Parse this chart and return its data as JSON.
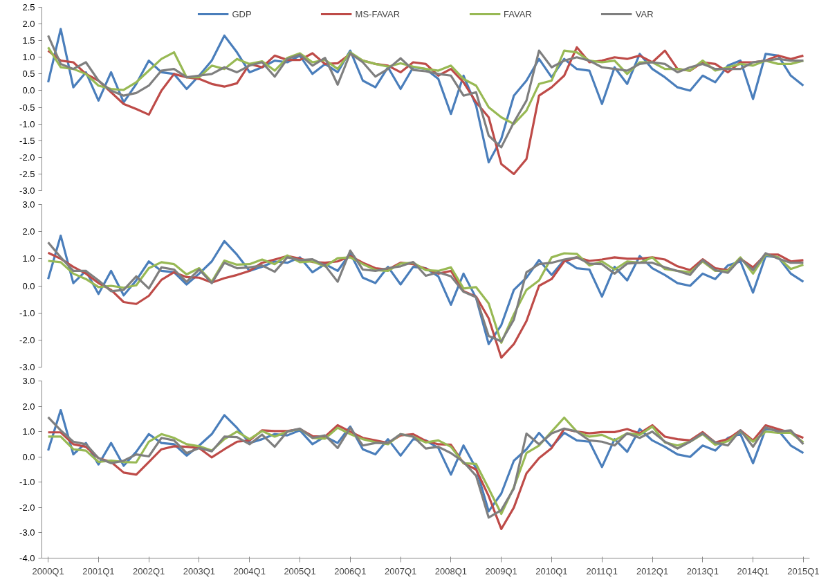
{
  "chart_data": [
    {
      "type": "line",
      "legend": "top",
      "tick_labels": "y",
      "grid": false,
      "categories": [
        null,
        null,
        null,
        null,
        null,
        null,
        null,
        null,
        null,
        null,
        null,
        null,
        null,
        null,
        null,
        null,
        null,
        null,
        null,
        null,
        null,
        null,
        null,
        null,
        null,
        null,
        null,
        null,
        null,
        null,
        null,
        null,
        null,
        null,
        null,
        null,
        null,
        null,
        null,
        null,
        null,
        null,
        null,
        null,
        null,
        null,
        null,
        null,
        null,
        null,
        null,
        null,
        null,
        null,
        null,
        null,
        null,
        null,
        null,
        null,
        null
      ],
      "ylim": [
        -3.0,
        2.5
      ],
      "yticks": [
        {
          "value": -3.0,
          "label": "-3.0"
        },
        {
          "value": -2.5,
          "label": "-2.5"
        },
        {
          "value": -2.0,
          "label": "-2.0"
        },
        {
          "value": -1.5,
          "label": "-1.5"
        },
        {
          "value": -1.0,
          "label": "-1.0"
        },
        {
          "value": -0.5,
          "label": "-0.5"
        },
        {
          "value": 0.0,
          "label": "0.0"
        },
        {
          "value": 0.5,
          "label": "0.5"
        },
        {
          "value": 1.0,
          "label": "1.0"
        },
        {
          "value": 1.5,
          "label": "1.5"
        },
        {
          "value": 2.0,
          "label": "2.0"
        },
        {
          "value": 2.5,
          "label": "2.5"
        }
      ],
      "series": [
        {
          "name": "GDP",
          "color": "#4a7ebb",
          "values": [
            0.25,
            1.85,
            0.1,
            0.55,
            -0.3,
            0.55,
            -0.35,
            0.2,
            0.9,
            0.55,
            0.5,
            0.05,
            0.45,
            0.9,
            1.65,
            1.15,
            0.55,
            0.7,
            0.9,
            0.85,
            1.05,
            0.5,
            0.8,
            0.55,
            1.2,
            0.3,
            0.1,
            0.7,
            0.05,
            0.7,
            0.65,
            0.35,
            -0.7,
            0.45,
            -0.45,
            -2.15,
            -1.45,
            -0.15,
            0.3,
            0.95,
            0.4,
            0.95,
            0.65,
            0.6,
            -0.4,
            0.7,
            0.2,
            1.1,
            0.65,
            0.4,
            0.1,
            0.0,
            0.45,
            0.25,
            0.75,
            0.9,
            -0.25,
            1.1,
            1.05,
            0.45,
            0.15
          ]
        },
        {
          "name": "MS-FAVAR",
          "color": "#be4b48",
          "values": [
            1.2,
            0.9,
            0.85,
            0.5,
            0.3,
            -0.05,
            -0.4,
            -0.55,
            -0.72,
            0.0,
            0.5,
            0.4,
            0.35,
            0.2,
            0.12,
            0.22,
            0.8,
            0.7,
            1.05,
            0.92,
            0.92,
            1.12,
            0.8,
            0.82,
            1.1,
            0.9,
            0.8,
            0.75,
            0.55,
            0.85,
            0.8,
            0.45,
            0.65,
            0.25,
            -0.35,
            -0.8,
            -2.2,
            -2.5,
            -2.05,
            -0.15,
            0.1,
            0.45,
            1.3,
            0.85,
            0.9,
            1.0,
            0.95,
            1.05,
            0.85,
            1.2,
            0.65,
            0.6,
            0.85,
            0.8,
            0.55,
            0.85,
            0.85,
            0.9,
            1.05,
            0.95,
            1.05
          ]
        },
        {
          "name": "FAVAR",
          "color": "#98b954",
          "values": [
            1.3,
            0.7,
            0.65,
            0.5,
            0.15,
            0.05,
            0.02,
            0.25,
            0.6,
            0.95,
            1.15,
            0.4,
            0.4,
            0.75,
            0.65,
            0.95,
            0.8,
            0.88,
            0.6,
            0.98,
            1.12,
            0.85,
            0.92,
            0.65,
            1.15,
            0.9,
            0.8,
            0.72,
            0.82,
            0.72,
            0.65,
            0.6,
            0.75,
            0.35,
            0.15,
            -0.5,
            -0.8,
            -1.0,
            -0.6,
            0.2,
            0.3,
            1.2,
            1.15,
            0.9,
            0.85,
            0.9,
            0.5,
            0.85,
            0.85,
            0.65,
            0.65,
            0.6,
            0.9,
            0.6,
            0.7,
            0.8,
            0.75,
            0.9,
            0.8,
            0.8,
            0.9
          ]
        },
        {
          "name": "VAR",
          "color": "#7f7f7f",
          "values": [
            1.65,
            0.8,
            0.65,
            0.85,
            0.3,
            0.0,
            -0.15,
            -0.07,
            0.15,
            0.6,
            0.65,
            0.4,
            0.45,
            0.5,
            0.7,
            0.55,
            0.75,
            0.85,
            0.42,
            0.95,
            1.08,
            0.75,
            0.98,
            0.18,
            1.12,
            0.85,
            0.42,
            0.65,
            0.97,
            0.62,
            0.58,
            0.5,
            0.45,
            -0.15,
            -0.05,
            -1.35,
            -1.7,
            -0.95,
            -0.3,
            1.2,
            0.7,
            0.9,
            1.0,
            0.9,
            0.7,
            0.65,
            0.6,
            0.8,
            0.85,
            0.8,
            0.55,
            0.7,
            0.8,
            0.65,
            0.65,
            0.65,
            0.85,
            0.9,
            0.95,
            0.9,
            0.9
          ]
        }
      ]
    },
    {
      "type": "line",
      "tick_labels": "y",
      "grid": false,
      "categories": [
        null,
        null,
        null,
        null,
        null,
        null,
        null,
        null,
        null,
        null,
        null,
        null,
        null,
        null,
        null,
        null,
        null,
        null,
        null,
        null,
        null,
        null,
        null,
        null,
        null,
        null,
        null,
        null,
        null,
        null,
        null,
        null,
        null,
        null,
        null,
        null,
        null,
        null,
        null,
        null,
        null,
        null,
        null,
        null,
        null,
        null,
        null,
        null,
        null,
        null,
        null,
        null,
        null,
        null,
        null,
        null,
        null,
        null,
        null,
        null,
        null
      ],
      "ylim": [
        -3.0,
        3.0
      ],
      "yticks": [
        {
          "value": -3.0,
          "label": "-3.0"
        },
        {
          "value": -2.0,
          "label": "-2.0"
        },
        {
          "value": -1.0,
          "label": "-1.0"
        },
        {
          "value": 0.0,
          "label": "0.0"
        },
        {
          "value": 1.0,
          "label": "1.0"
        },
        {
          "value": 2.0,
          "label": "2.0"
        },
        {
          "value": 3.0,
          "label": "3.0"
        }
      ],
      "series": [
        {
          "color": "#4a7ebb",
          "values": [
            0.25,
            1.85,
            0.1,
            0.55,
            -0.3,
            0.55,
            -0.35,
            0.2,
            0.9,
            0.55,
            0.5,
            0.05,
            0.45,
            0.9,
            1.65,
            1.15,
            0.55,
            0.7,
            0.9,
            0.85,
            1.05,
            0.5,
            0.8,
            0.55,
            1.2,
            0.3,
            0.1,
            0.7,
            0.05,
            0.7,
            0.65,
            0.35,
            -0.7,
            0.45,
            -0.45,
            -2.15,
            -1.45,
            -0.15,
            0.3,
            0.95,
            0.4,
            0.95,
            0.65,
            0.6,
            -0.4,
            0.7,
            0.2,
            1.1,
            0.65,
            0.4,
            0.1,
            0.0,
            0.45,
            0.25,
            0.75,
            0.9,
            -0.25,
            1.1,
            1.05,
            0.45,
            0.15
          ]
        },
        {
          "color": "#be4b48",
          "values": [
            1.22,
            1.0,
            0.7,
            0.45,
            0.1,
            -0.15,
            -0.6,
            -0.67,
            -0.37,
            0.22,
            0.5,
            0.32,
            0.3,
            0.12,
            0.28,
            0.4,
            0.55,
            0.85,
            0.97,
            1.1,
            1.0,
            0.88,
            0.85,
            0.9,
            1.1,
            0.85,
            0.65,
            0.6,
            0.85,
            0.8,
            0.63,
            0.45,
            0.55,
            -0.2,
            -0.4,
            -1.2,
            -2.65,
            -2.15,
            -1.3,
            0.0,
            0.25,
            0.9,
            1.05,
            0.92,
            0.97,
            1.05,
            1.0,
            1.0,
            1.05,
            0.97,
            0.72,
            0.58,
            0.98,
            0.65,
            0.58,
            1.0,
            0.68,
            1.15,
            1.15,
            0.9,
            0.95
          ]
        },
        {
          "color": "#98b954",
          "values": [
            0.92,
            0.87,
            0.45,
            0.25,
            -0.05,
            0.0,
            -0.07,
            0.02,
            0.65,
            0.87,
            0.8,
            0.42,
            0.65,
            0.15,
            0.93,
            0.78,
            0.8,
            0.97,
            0.8,
            1.12,
            0.87,
            0.9,
            0.72,
            1.02,
            1.05,
            0.8,
            0.58,
            0.55,
            0.82,
            0.85,
            0.58,
            0.55,
            0.68,
            -0.1,
            -0.05,
            -0.65,
            -2.1,
            -1.05,
            -0.15,
            0.2,
            1.05,
            1.2,
            1.18,
            0.75,
            0.9,
            0.6,
            0.9,
            0.85,
            1.05,
            0.62,
            0.55,
            0.5,
            0.9,
            0.55,
            0.55,
            1.05,
            0.45,
            1.15,
            1.05,
            0.62,
            0.78
          ]
        },
        {
          "color": "#7f7f7f",
          "values": [
            1.6,
            1.05,
            0.55,
            0.55,
            0.2,
            -0.2,
            -0.15,
            0.35,
            -0.1,
            0.68,
            0.6,
            0.15,
            0.6,
            0.1,
            0.85,
            0.65,
            0.68,
            0.75,
            0.52,
            1.05,
            0.95,
            0.98,
            0.75,
            0.15,
            1.3,
            0.6,
            0.55,
            0.65,
            0.72,
            0.88,
            0.37,
            0.5,
            0.35,
            -0.22,
            -0.42,
            -1.85,
            -2.05,
            -1.25,
            0.5,
            0.8,
            0.85,
            0.97,
            1.05,
            0.82,
            0.8,
            0.45,
            0.82,
            0.85,
            0.85,
            0.68,
            0.55,
            0.4,
            0.95,
            0.58,
            0.48,
            1.0,
            0.58,
            1.2,
            1.0,
            0.85,
            0.85
          ]
        }
      ]
    },
    {
      "type": "line",
      "grid": false,
      "categories": [
        "2000Q1",
        null,
        null,
        null,
        "2001Q1",
        null,
        null,
        null,
        "2002Q1",
        null,
        null,
        null,
        "2003Q1",
        null,
        null,
        null,
        "2004Q1",
        null,
        null,
        null,
        "2005Q1",
        null,
        null,
        null,
        "2006Q1",
        null,
        null,
        null,
        "2007Q1",
        null,
        null,
        null,
        "2008Q1",
        null,
        null,
        null,
        "2009Q1",
        null,
        null,
        null,
        "2010Q1",
        null,
        null,
        null,
        "2011Q1",
        null,
        null,
        null,
        "2012Q1",
        null,
        null,
        null,
        "2013Q1",
        null,
        null,
        null,
        "2014Q1",
        null,
        null,
        null,
        "2015Q1"
      ],
      "ylim": [
        -4.0,
        3.0
      ],
      "yticks": [
        {
          "value": -4.0,
          "label": "-4.0"
        },
        {
          "value": -3.0,
          "label": "-3.0"
        },
        {
          "value": -2.0,
          "label": "-2.0"
        },
        {
          "value": -1.0,
          "label": "-1.0"
        },
        {
          "value": 0.0,
          "label": "0.0"
        },
        {
          "value": 1.0,
          "label": "1.0"
        },
        {
          "value": 2.0,
          "label": "2.0"
        },
        {
          "value": 3.0,
          "label": "3.0"
        }
      ],
      "series": [
        {
          "color": "#4a7ebb",
          "values": [
            0.25,
            1.85,
            0.1,
            0.55,
            -0.3,
            0.55,
            -0.35,
            0.2,
            0.9,
            0.55,
            0.5,
            0.05,
            0.45,
            0.9,
            1.65,
            1.15,
            0.55,
            0.7,
            0.9,
            0.85,
            1.05,
            0.5,
            0.8,
            0.55,
            1.2,
            0.3,
            0.1,
            0.7,
            0.05,
            0.7,
            0.65,
            0.35,
            -0.7,
            0.45,
            -0.45,
            -2.15,
            -1.45,
            -0.15,
            0.3,
            0.95,
            0.4,
            0.95,
            0.65,
            0.6,
            -0.4,
            0.7,
            0.2,
            1.1,
            0.65,
            0.4,
            0.1,
            0.0,
            0.45,
            0.25,
            0.75,
            0.9,
            -0.25,
            1.1,
            1.05,
            0.45,
            0.15
          ]
        },
        {
          "color": "#be4b48",
          "values": [
            0.97,
            0.97,
            0.5,
            0.4,
            -0.05,
            -0.2,
            -0.62,
            -0.7,
            -0.2,
            0.3,
            0.42,
            0.4,
            0.35,
            -0.02,
            0.3,
            0.6,
            0.65,
            1.05,
            1.02,
            1.02,
            1.1,
            0.82,
            0.8,
            1.25,
            1.0,
            0.75,
            0.65,
            0.55,
            0.85,
            0.9,
            0.63,
            0.5,
            0.48,
            -0.25,
            -0.5,
            -1.55,
            -2.85,
            -2.0,
            -0.65,
            -0.05,
            0.35,
            1.1,
            1.0,
            0.93,
            0.98,
            0.98,
            1.1,
            0.93,
            1.25,
            0.8,
            0.7,
            0.65,
            0.98,
            0.57,
            0.7,
            1.05,
            0.65,
            1.25,
            1.1,
            0.95,
            0.75
          ]
        },
        {
          "color": "#98b954",
          "values": [
            0.8,
            0.8,
            0.3,
            0.25,
            -0.2,
            -0.15,
            -0.2,
            -0.22,
            0.6,
            0.9,
            0.75,
            0.5,
            0.42,
            0.25,
            0.7,
            1.0,
            0.7,
            1.02,
            0.8,
            1.0,
            1.1,
            0.75,
            0.72,
            1.15,
            0.9,
            0.7,
            0.58,
            0.5,
            0.9,
            0.8,
            0.57,
            0.65,
            0.4,
            -0.25,
            -0.28,
            -1.25,
            -2.25,
            -1.2,
            0.15,
            0.45,
            1.0,
            1.55,
            1.0,
            0.8,
            0.87,
            0.65,
            0.93,
            0.87,
            1.2,
            0.57,
            0.45,
            0.6,
            0.9,
            0.48,
            0.62,
            1.0,
            0.6,
            1.0,
            0.95,
            0.95,
            0.57
          ]
        },
        {
          "color": "#7f7f7f",
          "values": [
            1.57,
            1.05,
            0.6,
            0.5,
            -0.05,
            -0.25,
            -0.15,
            0.1,
            0.02,
            0.75,
            0.65,
            0.15,
            0.35,
            0.22,
            0.8,
            0.78,
            0.5,
            0.88,
            0.4,
            1.0,
            1.12,
            0.75,
            0.85,
            0.35,
            1.15,
            0.45,
            0.55,
            0.55,
            0.9,
            0.8,
            0.33,
            0.4,
            0.15,
            -0.2,
            -0.75,
            -2.4,
            -2.1,
            -1.25,
            0.92,
            0.5,
            0.93,
            1.12,
            1.0,
            0.65,
            0.6,
            0.45,
            0.93,
            0.75,
            1.0,
            0.6,
            0.33,
            0.6,
            0.93,
            0.57,
            0.45,
            1.05,
            0.4,
            1.17,
            1.0,
            1.05,
            0.5
          ]
        }
      ]
    }
  ]
}
